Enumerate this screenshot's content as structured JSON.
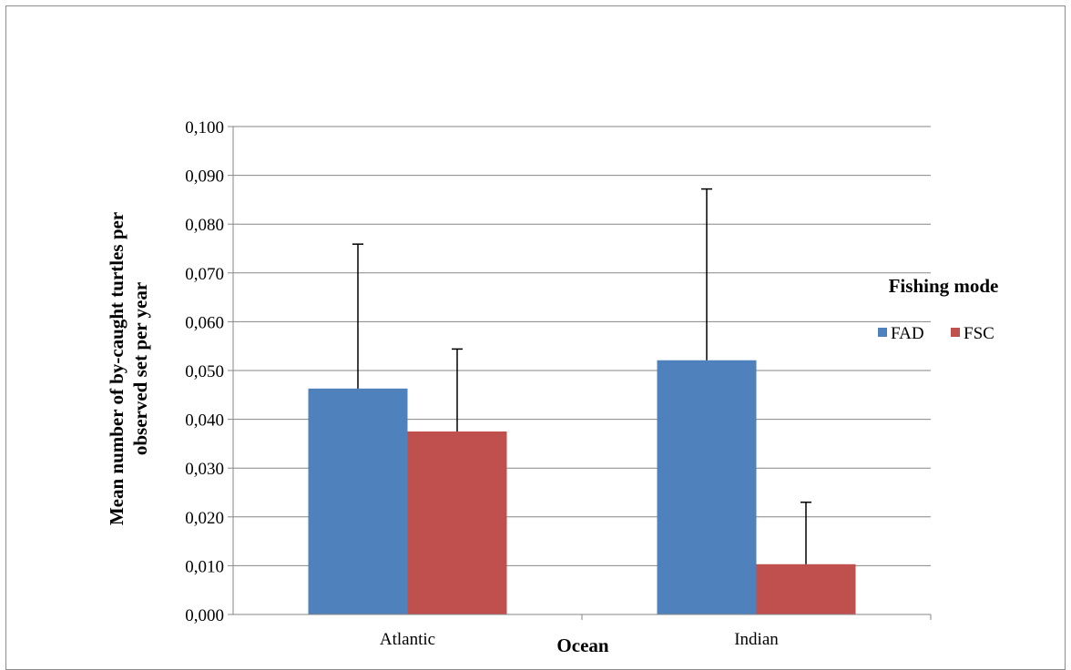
{
  "chart_data": {
    "type": "bar",
    "categories": [
      "Atlantic",
      "Indian"
    ],
    "series": [
      {
        "name": "FAD",
        "values": [
          0.0463,
          0.0521
        ],
        "errors": [
          0.0296,
          0.0351
        ],
        "color": "#4f81bd"
      },
      {
        "name": "FSC",
        "values": [
          0.0375,
          0.0103
        ],
        "errors": [
          0.0169,
          0.0127
        ],
        "color": "#c0504d"
      }
    ],
    "xlabel": "Ocean",
    "ylabel_lines": [
      "Mean number of by-caught turtles per",
      "observed set per year"
    ],
    "ylim": [
      0,
      0.1
    ],
    "yticks": [
      "0,000",
      "0,010",
      "0,020",
      "0,030",
      "0,040",
      "0,050",
      "0,060",
      "0,070",
      "0,080",
      "0,090",
      "0,100"
    ],
    "legend": {
      "title": "Fishing mode",
      "position": "right"
    },
    "grid": true
  }
}
